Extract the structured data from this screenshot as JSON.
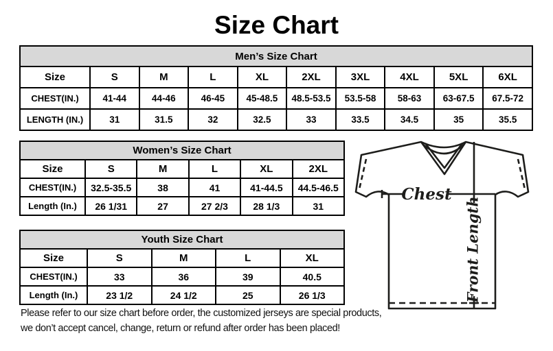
{
  "page": {
    "title": "Size Chart"
  },
  "tables": [
    {
      "id": "mens",
      "title": "Men’s Size Chart",
      "columns": [
        "Size",
        "S",
        "M",
        "L",
        "XL",
        "2XL",
        "3XL",
        "4XL",
        "5XL",
        "6XL"
      ],
      "rows": [
        {
          "label": "CHEST(IN.)",
          "values": [
            "41-44",
            "44-46",
            "46-45",
            "45-48.5",
            "48.5-53.5",
            "53.5-58",
            "58-63",
            "63-67.5",
            "67.5-72"
          ]
        },
        {
          "label": "LENGTH (IN.)",
          "values": [
            "31",
            "31.5",
            "32",
            "32.5",
            "33",
            "33.5",
            "34.5",
            "35",
            "35.5"
          ]
        }
      ]
    },
    {
      "id": "womens",
      "title": "Women’s Size Chart",
      "columns": [
        "Size",
        "S",
        "M",
        "L",
        "XL",
        "2XL"
      ],
      "rows": [
        {
          "label": "CHEST(IN.)",
          "values": [
            "32.5-35.5",
            "38",
            "41",
            "41-44.5",
            "44.5-46.5"
          ]
        },
        {
          "label": "Length (In.)",
          "values": [
            "26 1/31",
            "27",
            "27 2/3",
            "28 1/3",
            "31"
          ]
        }
      ]
    },
    {
      "id": "youth",
      "title": "Youth Size Chart",
      "columns": [
        "Size",
        "S",
        "M",
        "L",
        "XL"
      ],
      "rows": [
        {
          "label": "CHEST(IN.)",
          "values": [
            "33",
            "36",
            "39",
            "40.5"
          ]
        },
        {
          "label": "Length (In.)",
          "values": [
            "23 1/2",
            "24 1/2",
            "25",
            "26 1/3"
          ]
        }
      ]
    }
  ],
  "diagram": {
    "chest_label": "Chest",
    "front_length_label": "Front Length"
  },
  "footer": {
    "line1": "Please refer to our size chart before order, the customized jerseys are special products,",
    "line2": "we don’t accept cancel, change, return or refund after order has been placed!"
  },
  "colors": {
    "table_header_bg": "#d8d8d8",
    "table_border": "#000000",
    "diagram_stroke": "#1d1d1b"
  }
}
